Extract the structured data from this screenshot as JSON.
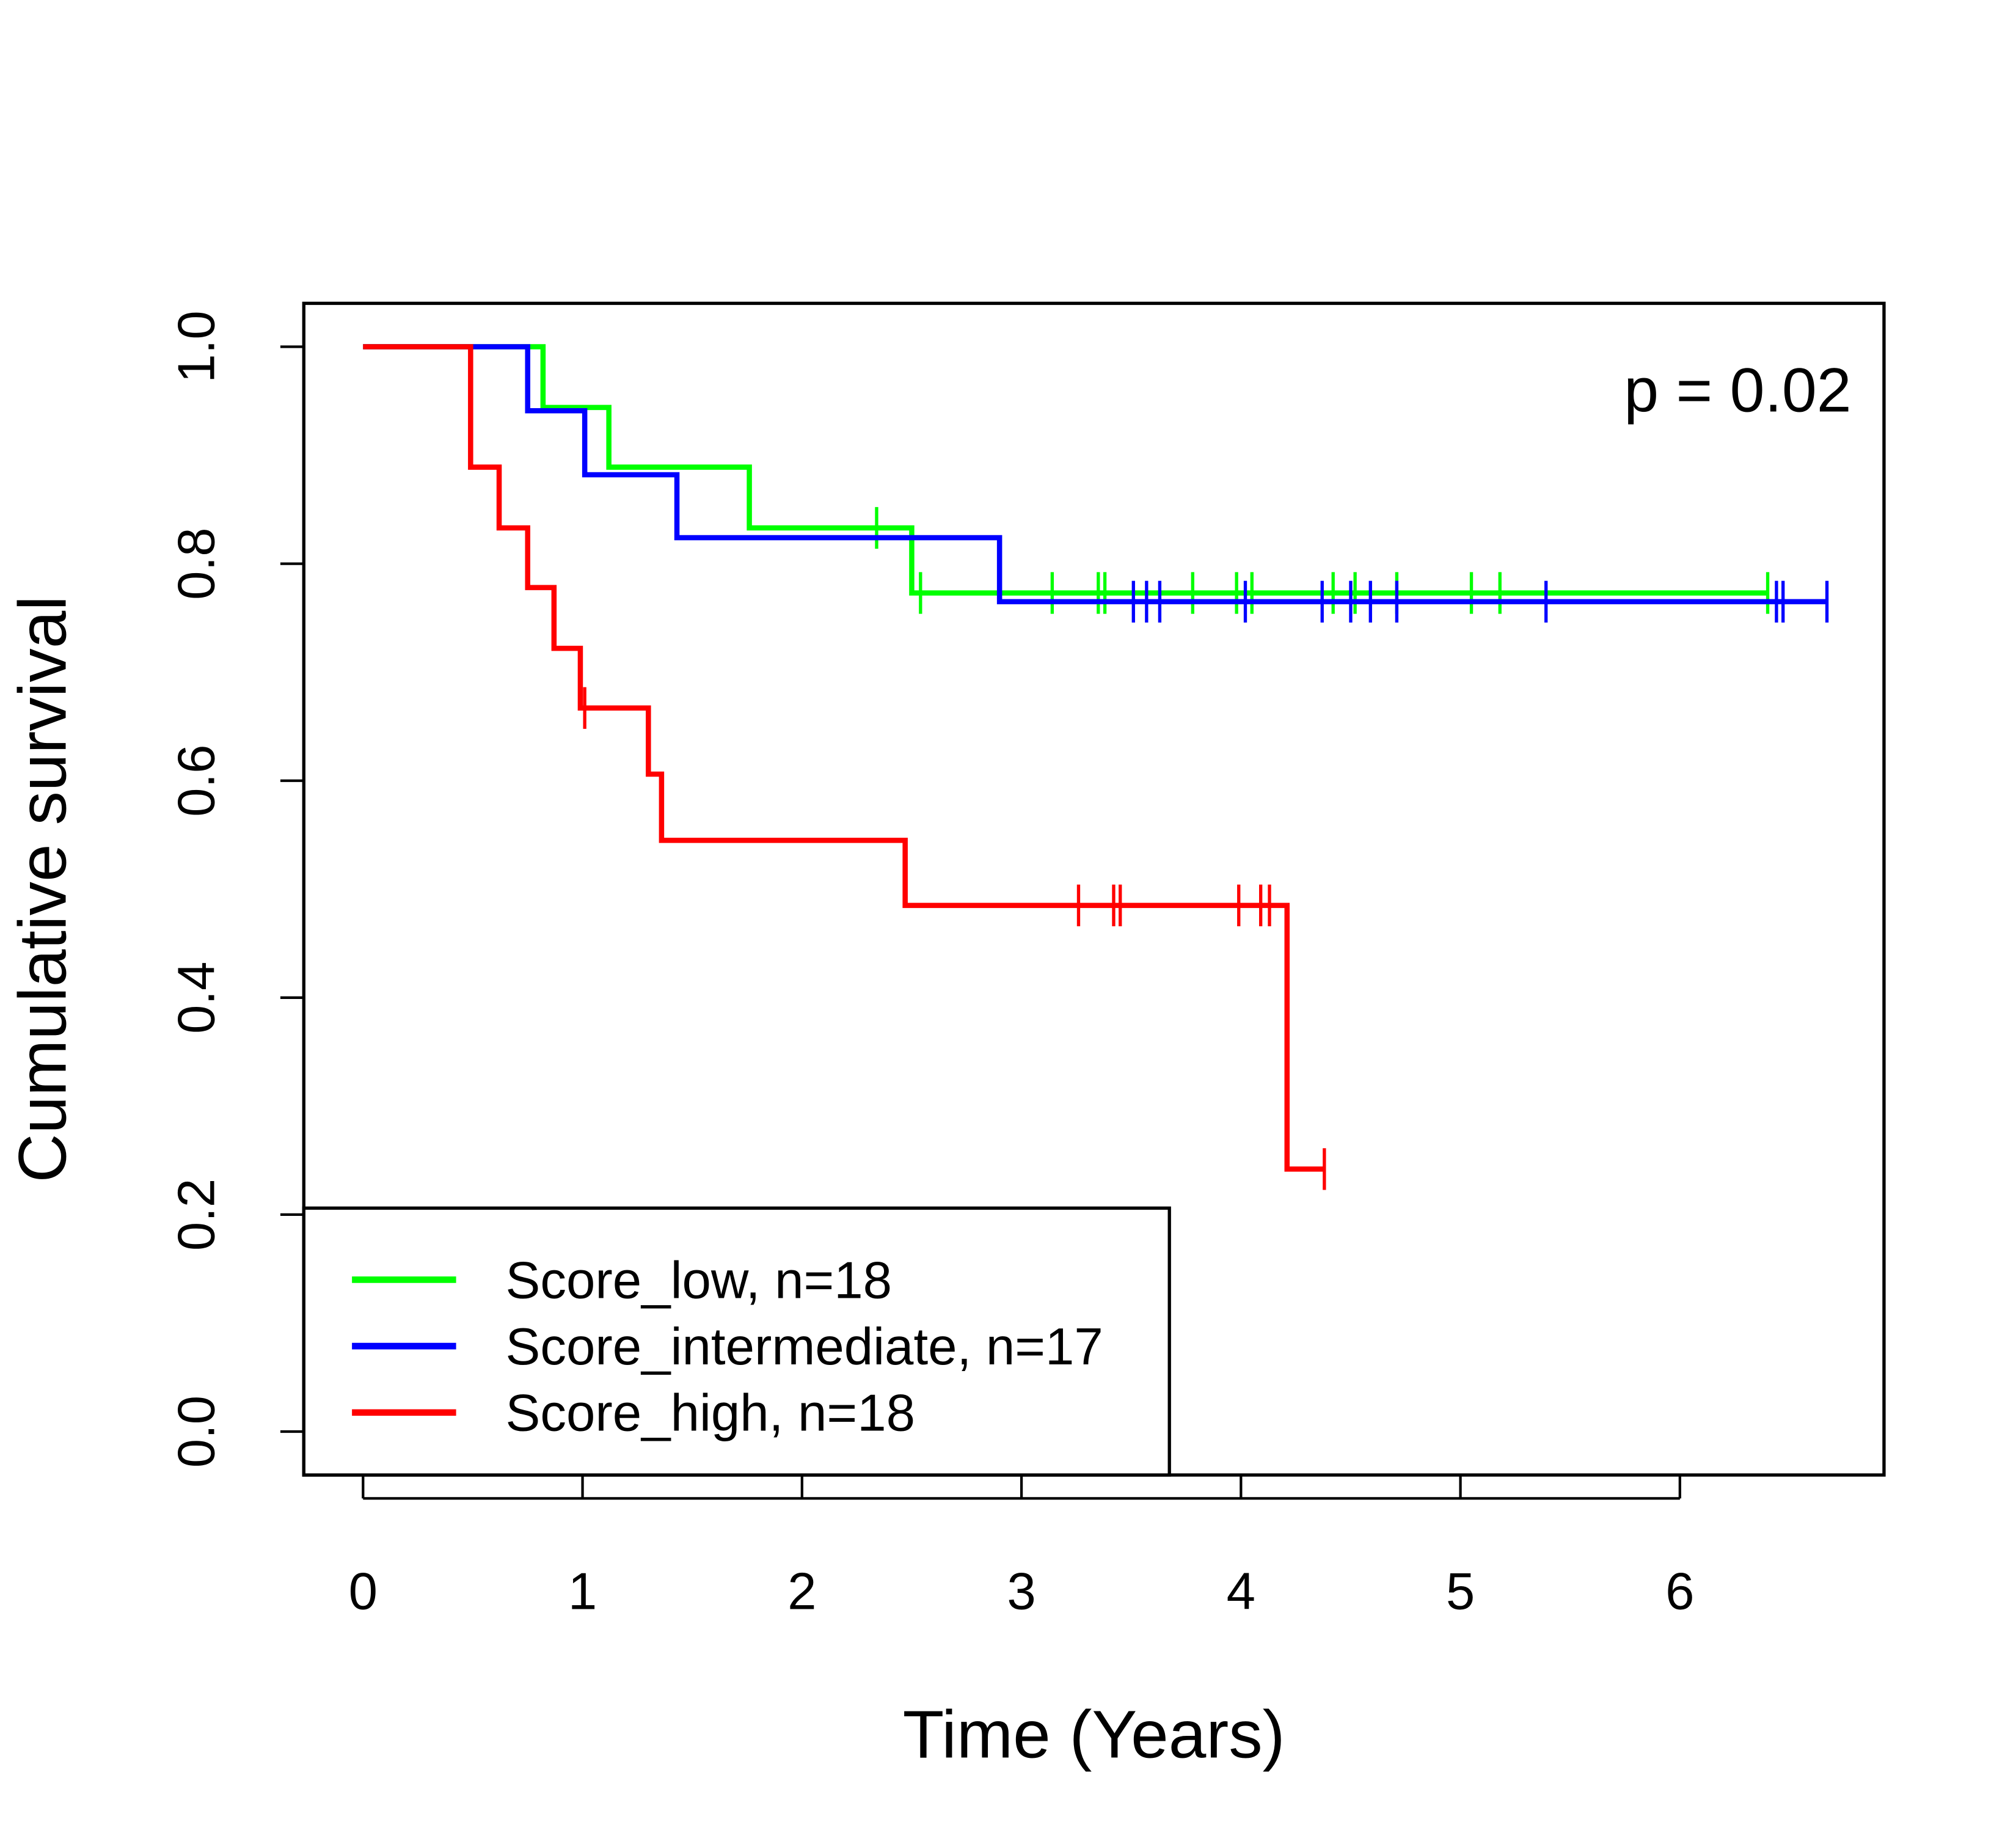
{
  "chart_data": {
    "type": "survival",
    "xlabel": "Time (Years)",
    "ylabel": "Cumulative survival",
    "annotation": "p = 0.02",
    "xlim": [
      -0.27,
      6.93
    ],
    "ylim": [
      -0.04,
      1.04
    ],
    "xticks": [
      0,
      1,
      2,
      3,
      4,
      5,
      6
    ],
    "yticks": [
      {
        "value": 0,
        "label": "0.0"
      },
      {
        "value": 0.2,
        "label": "0.2"
      },
      {
        "value": 0.4,
        "label": "0.4"
      },
      {
        "value": 0.6,
        "label": "0.6"
      },
      {
        "value": 0.8,
        "label": "0.8"
      },
      {
        "value": 1,
        "label": "1.0"
      }
    ],
    "legend": "bottom-left",
    "series": [
      {
        "name": "Score_low, n=18",
        "color": "#00ff00",
        "x": [
          0,
          0.82,
          1.12,
          1.76,
          2.5
        ],
        "values": [
          1.0,
          0.944,
          0.889,
          0.833,
          0.773
        ],
        "censor_x": [
          2.34,
          2.54,
          3.14,
          3.35,
          3.38,
          3.78,
          3.98,
          4.05,
          4.42,
          4.52,
          4.71,
          5.05,
          5.18,
          6.4
        ],
        "censor_values": [
          0.833,
          0.773,
          0.773,
          0.773,
          0.773,
          0.773,
          0.773,
          0.773,
          0.773,
          0.773,
          0.773,
          0.773,
          0.773,
          0.773
        ]
      },
      {
        "name": "Score_intermediate, n=17",
        "color": "#0000ff",
        "x": [
          0,
          0.75,
          1.01,
          1.43,
          2.9
        ],
        "values": [
          1.0,
          0.941,
          0.882,
          0.824,
          0.765
        ],
        "censor_x": [
          3.51,
          3.57,
          3.63,
          4.02,
          4.37,
          4.5,
          4.59,
          4.71,
          5.39,
          6.44,
          6.47,
          6.67
        ],
        "censor_values": [
          0.765,
          0.765,
          0.765,
          0.765,
          0.765,
          0.765,
          0.765,
          0.765,
          0.765,
          0.765,
          0.765,
          0.765
        ]
      },
      {
        "name": "Score_high, n=18",
        "color": "#ff0000",
        "x": [
          0,
          0.49,
          0.62,
          0.75,
          0.87,
          0.99,
          1.3,
          1.36,
          2.47,
          4.21
        ],
        "values": [
          1.0,
          0.889,
          0.833,
          0.778,
          0.722,
          0.667,
          0.606,
          0.545,
          0.485,
          0.242
        ],
        "censor_x": [
          1.01,
          3.26,
          3.42,
          3.45,
          3.99,
          4.09,
          4.13,
          4.38
        ],
        "censor_values": [
          0.667,
          0.485,
          0.485,
          0.485,
          0.485,
          0.485,
          0.485,
          0.242
        ]
      }
    ]
  }
}
